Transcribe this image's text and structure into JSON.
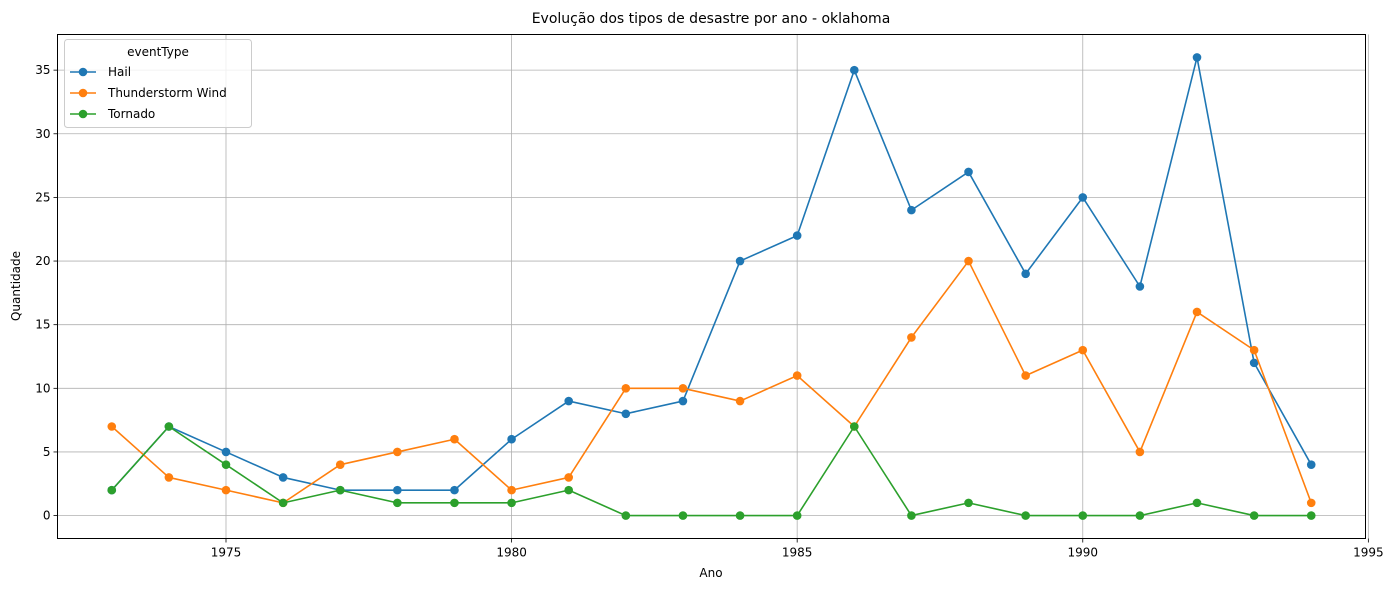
{
  "chart_data": {
    "type": "line",
    "title": "Evolução dos tipos de desastre por ano - oklahoma",
    "xlabel": "Ano",
    "ylabel": "Quantidade",
    "xlim": [
      1972.05,
      1994.95
    ],
    "ylim": [
      -1.8,
      37.8
    ],
    "x_ticks": [
      1975,
      1980,
      1985,
      1990,
      1995
    ],
    "y_ticks": [
      0,
      5,
      10,
      15,
      20,
      25,
      30,
      35
    ],
    "grid": true,
    "legend": {
      "title": "eventType",
      "placement": "top-left"
    },
    "x": [
      1973,
      1974,
      1975,
      1976,
      1977,
      1978,
      1979,
      1980,
      1981,
      1982,
      1983,
      1984,
      1985,
      1986,
      1987,
      1988,
      1989,
      1990,
      1991,
      1992,
      1993,
      1994
    ],
    "series": [
      {
        "name": "Hail",
        "color": "#1f77b4",
        "values": [
          2,
          7,
          5,
          3,
          2,
          2,
          2,
          6,
          9,
          8,
          9,
          20,
          22,
          35,
          24,
          27,
          19,
          25,
          18,
          36,
          12,
          4
        ]
      },
      {
        "name": "Thunderstorm Wind",
        "color": "#ff7f0e",
        "values": [
          7,
          3,
          2,
          1,
          4,
          5,
          6,
          2,
          3,
          10,
          10,
          9,
          11,
          7,
          14,
          20,
          11,
          13,
          5,
          16,
          13,
          1
        ]
      },
      {
        "name": "Tornado",
        "color": "#2ca02c",
        "values": [
          2,
          7,
          4,
          1,
          2,
          1,
          1,
          1,
          2,
          0,
          0,
          0,
          0,
          7,
          0,
          1,
          0,
          0,
          0,
          1,
          0,
          0
        ]
      }
    ]
  }
}
